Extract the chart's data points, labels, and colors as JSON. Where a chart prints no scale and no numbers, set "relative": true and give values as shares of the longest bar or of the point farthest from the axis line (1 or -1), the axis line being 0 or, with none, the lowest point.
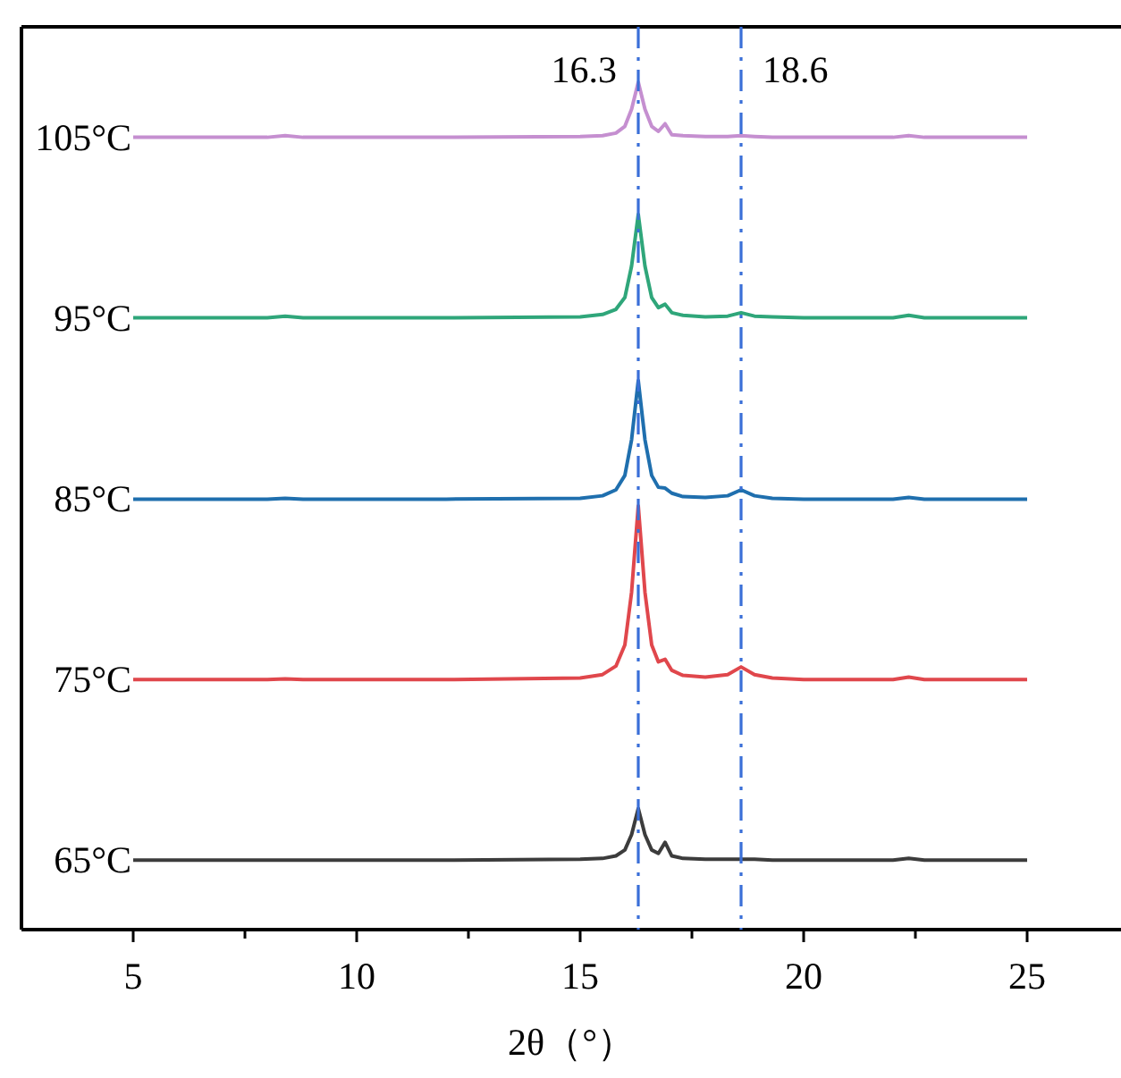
{
  "chart_data": {
    "type": "line",
    "relative": true,
    "xlabel": "2θ（°）",
    "xlim": [
      2.5,
      27.1
    ],
    "xticks": [
      5,
      {
        "value": 7.5,
        "label": null
      },
      10,
      {
        "value": 12.5,
        "label": null
      },
      15,
      {
        "value": 17.5,
        "label": null
      },
      20,
      {
        "value": 22.5,
        "label": null
      },
      25
    ],
    "tick_labels": "x",
    "grid": false,
    "marker": "none",
    "line_style": "solid",
    "x": [
      5,
      8,
      8.4,
      8.8,
      12,
      15,
      15.5,
      15.8,
      16.0,
      16.15,
      16.3,
      16.45,
      16.6,
      16.75,
      16.9,
      17.05,
      17.3,
      17.8,
      18.3,
      18.6,
      18.9,
      19.3,
      20,
      22,
      22.35,
      22.7,
      25
    ],
    "series": [
      {
        "name": "105°C",
        "color": "#c58fd0",
        "values": [
          0.935,
          0.935,
          0.937,
          0.935,
          0.935,
          0.936,
          0.937,
          0.94,
          0.948,
          0.968,
          1.0,
          0.968,
          0.948,
          0.942,
          0.951,
          0.938,
          0.937,
          0.936,
          0.936,
          0.937,
          0.936,
          0.935,
          0.935,
          0.935,
          0.937,
          0.935,
          0.935
        ]
      },
      {
        "name": "95°C",
        "color": "#2fa67a",
        "values": [
          0.722,
          0.722,
          0.724,
          0.722,
          0.722,
          0.723,
          0.726,
          0.732,
          0.746,
          0.783,
          0.844,
          0.783,
          0.746,
          0.734,
          0.738,
          0.728,
          0.725,
          0.723,
          0.724,
          0.728,
          0.724,
          0.723,
          0.722,
          0.722,
          0.725,
          0.722,
          0.722
        ]
      },
      {
        "name": "85°C",
        "color": "#1f6fae",
        "values": [
          0.508,
          0.508,
          0.509,
          0.508,
          0.508,
          0.509,
          0.512,
          0.519,
          0.536,
          0.578,
          0.648,
          0.578,
          0.536,
          0.522,
          0.521,
          0.515,
          0.511,
          0.51,
          0.512,
          0.519,
          0.512,
          0.509,
          0.508,
          0.508,
          0.51,
          0.508,
          0.508
        ]
      },
      {
        "name": "75°C",
        "color": "#e0474c",
        "values": [
          0.295,
          0.295,
          0.296,
          0.295,
          0.295,
          0.297,
          0.301,
          0.311,
          0.336,
          0.398,
          0.5,
          0.398,
          0.336,
          0.316,
          0.319,
          0.306,
          0.3,
          0.298,
          0.301,
          0.31,
          0.301,
          0.297,
          0.295,
          0.295,
          0.298,
          0.295,
          0.295
        ]
      },
      {
        "name": "65°C",
        "color": "#3c3c3c",
        "values": [
          0.082,
          0.082,
          0.082,
          0.082,
          0.082,
          0.083,
          0.084,
          0.087,
          0.094,
          0.112,
          0.143,
          0.112,
          0.094,
          0.09,
          0.103,
          0.087,
          0.084,
          0.083,
          0.083,
          0.083,
          0.083,
          0.082,
          0.082,
          0.082,
          0.084,
          0.082,
          0.082
        ]
      }
    ],
    "ref_lines": [
      {
        "axis": "x",
        "value": 16.3,
        "label": "16.3",
        "color": "#3a6fd8",
        "line_style": "dashdot"
      },
      {
        "axis": "x",
        "value": 18.6,
        "label": "18.6",
        "color": "#3a6fd8",
        "line_style": "dashdot"
      }
    ]
  }
}
